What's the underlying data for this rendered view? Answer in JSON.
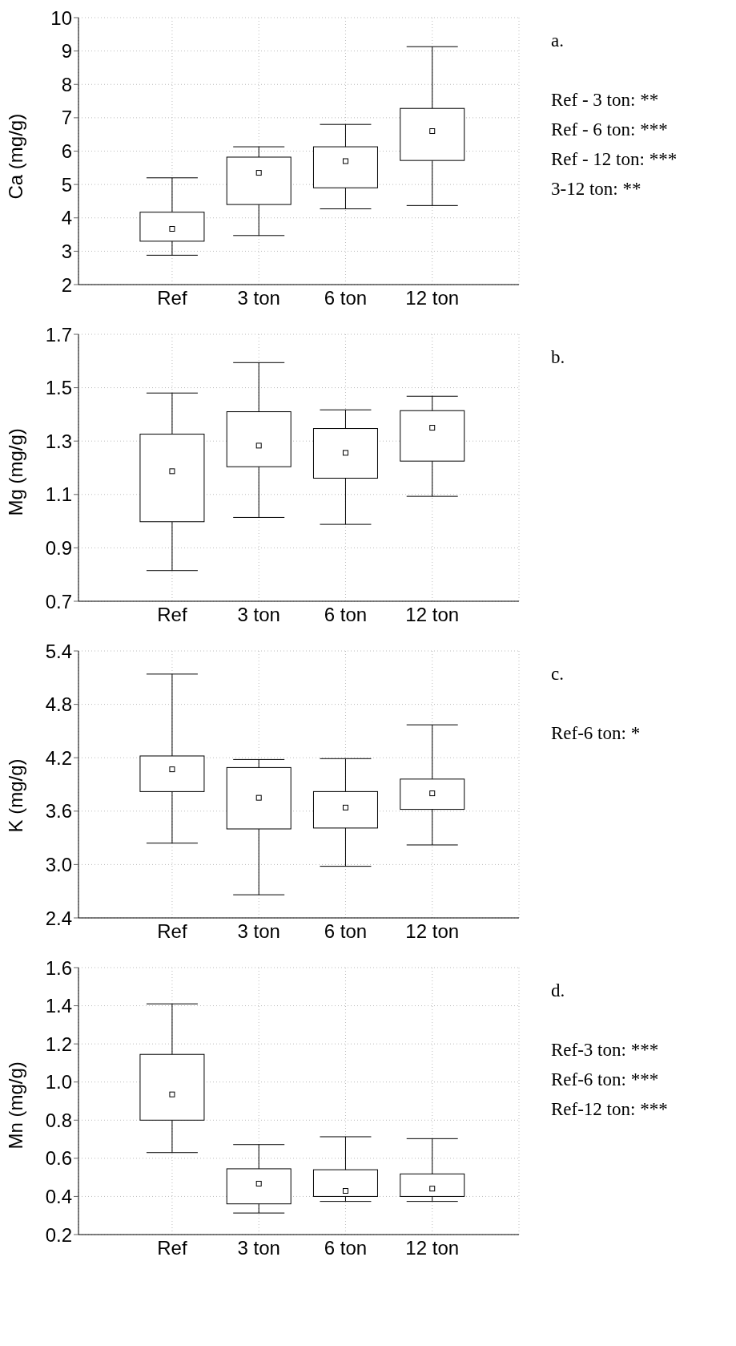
{
  "chart_data": [
    {
      "type": "box",
      "ylabel": "Ca (mg/g)",
      "categories": [
        "Ref",
        "3 ton",
        "6 ton",
        "12 ton"
      ],
      "ylim": [
        2,
        10
      ],
      "yticks": [
        2,
        3,
        4,
        5,
        6,
        7,
        8,
        9,
        10
      ],
      "grid": true,
      "annotations": [
        "a.",
        "Ref - 3 ton: **",
        "Ref - 6 ton: ***",
        "Ref - 12 ton: ***",
        "3-12 ton: **"
      ],
      "boxes": [
        {
          "low": 2.88,
          "q1": 3.3,
          "median": 3.67,
          "q3": 4.17,
          "high": 5.2
        },
        {
          "low": 3.47,
          "q1": 4.4,
          "median": 5.35,
          "q3": 5.82,
          "high": 6.13
        },
        {
          "low": 4.27,
          "q1": 4.9,
          "median": 5.7,
          "q3": 6.13,
          "high": 6.8
        },
        {
          "low": 4.37,
          "q1": 5.72,
          "median": 6.6,
          "q3": 7.28,
          "high": 9.13
        }
      ]
    },
    {
      "type": "box",
      "ylabel": "Mg (mg/g)",
      "categories": [
        "Ref",
        "3 ton",
        "6 ton",
        "12 ton"
      ],
      "ylim": [
        0.7,
        1.7
      ],
      "yticks": [
        0.7,
        0.9,
        1.1,
        1.3,
        1.5,
        1.7
      ],
      "grid": true,
      "annotations": [
        "b."
      ],
      "boxes": [
        {
          "low": 0.815,
          "q1": 0.998,
          "median": 1.187,
          "q3": 1.326,
          "high": 1.48
        },
        {
          "low": 1.014,
          "q1": 1.204,
          "median": 1.283,
          "q3": 1.41,
          "high": 1.594
        },
        {
          "low": 0.988,
          "q1": 1.161,
          "median": 1.256,
          "q3": 1.347,
          "high": 1.417
        },
        {
          "low": 1.093,
          "q1": 1.225,
          "median": 1.35,
          "q3": 1.414,
          "high": 1.468
        }
      ]
    },
    {
      "type": "box",
      "ylabel": "K (mg/g)",
      "categories": [
        "Ref",
        "3 ton",
        "6 ton",
        "12 ton"
      ],
      "ylim": [
        2.4,
        5.4
      ],
      "yticks": [
        2.4,
        {
          "value": 3,
          "label": "3.0"
        },
        3.6,
        4.2,
        4.8,
        5.4
      ],
      "grid": true,
      "annotations": [
        "c.",
        "Ref-6 ton: *"
      ],
      "boxes": [
        {
          "low": 3.24,
          "q1": 3.82,
          "median": 4.07,
          "q3": 4.22,
          "high": 5.14
        },
        {
          "low": 2.66,
          "q1": 3.4,
          "median": 3.75,
          "q3": 4.09,
          "high": 4.18
        },
        {
          "low": 2.98,
          "q1": 3.41,
          "median": 3.64,
          "q3": 3.82,
          "high": 4.19
        },
        {
          "low": 3.22,
          "q1": 3.62,
          "median": 3.8,
          "q3": 3.96,
          "high": 4.57
        }
      ]
    },
    {
      "type": "box",
      "ylabel": "Mn (mg/g)",
      "categories": [
        "Ref",
        "3 ton",
        "6 ton",
        "12 ton"
      ],
      "ylim": [
        0.2,
        1.6
      ],
      "yticks": [
        0.2,
        0.4,
        0.6,
        0.8,
        {
          "value": 1,
          "label": "1.0"
        },
        1.2,
        1.4,
        1.6
      ],
      "grid": true,
      "annotations": [
        "d.",
        "Ref-3 ton: ***",
        "Ref-6 ton: ***",
        "Ref-12 ton: ***"
      ],
      "boxes": [
        {
          "low": 0.63,
          "q1": 0.8,
          "median": 0.935,
          "q3": 1.145,
          "high": 1.41
        },
        {
          "low": 0.313,
          "q1": 0.361,
          "median": 0.467,
          "q3": 0.545,
          "high": 0.672
        },
        {
          "low": 0.374,
          "q1": 0.4,
          "median": 0.429,
          "q3": 0.54,
          "high": 0.713
        },
        {
          "low": 0.374,
          "q1": 0.4,
          "median": 0.441,
          "q3": 0.518,
          "high": 0.703
        }
      ]
    }
  ]
}
